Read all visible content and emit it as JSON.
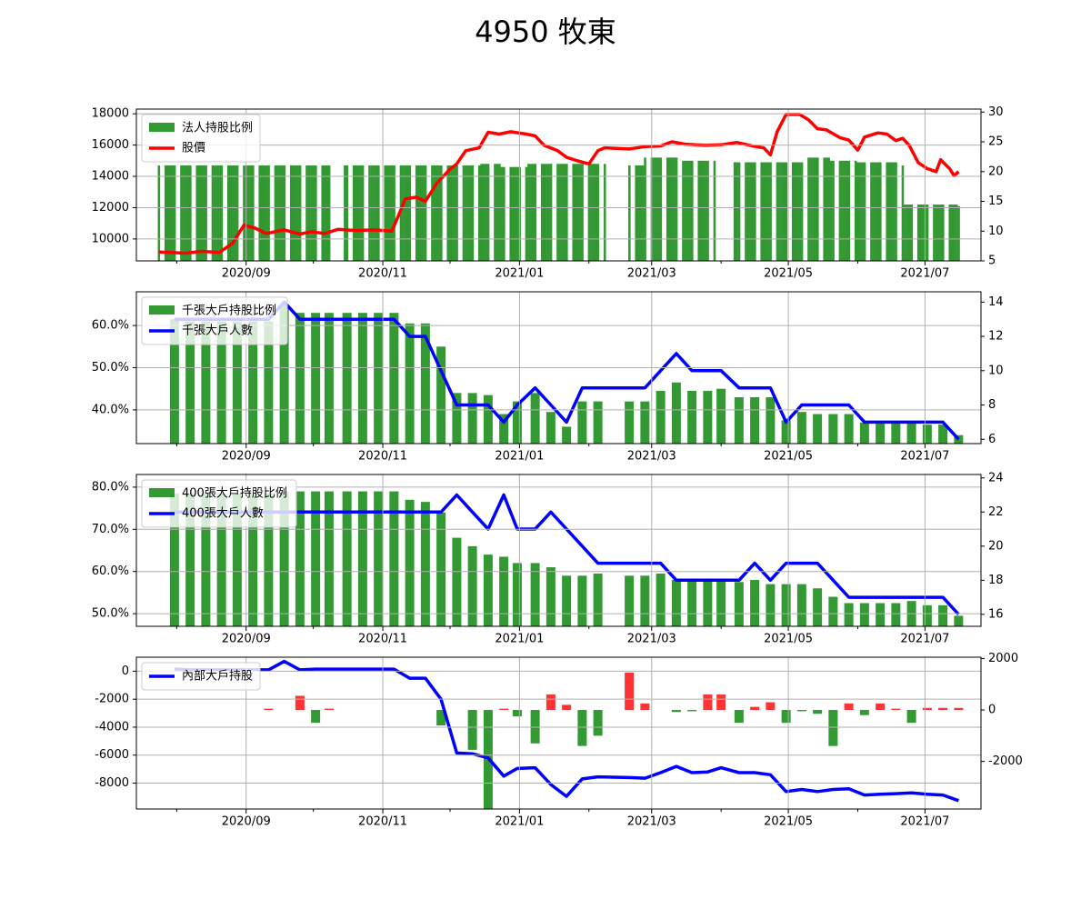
{
  "page": {
    "title": "4950 牧東"
  },
  "colors": {
    "bar": "#008000",
    "price_line": "#ff0000",
    "count_line": "#0000ff",
    "pos_bar": "#ff0000",
    "neg_bar": "#008000",
    "grid": "#b0b0b0"
  },
  "x_axis": {
    "start": "2020-07-14",
    "end": "2021-07-26",
    "ticks": [
      {
        "date": "2020-09-01",
        "label": "2020/09"
      },
      {
        "date": "2020-11-01",
        "label": "2020/11"
      },
      {
        "date": "2021-01-01",
        "label": "2021/01"
      },
      {
        "date": "2021-03-01",
        "label": "2021/03"
      },
      {
        "date": "2021-05-01",
        "label": "2021/05"
      },
      {
        "date": "2021-07-01",
        "label": "2021/07"
      }
    ],
    "minor_ticks": [
      "2020-08-01",
      "2020-10-01",
      "2020-12-01",
      "2021-02-01",
      "2021-04-01",
      "2021-06-01"
    ]
  },
  "chart_data": [
    {
      "type": "bar",
      "name": "panel1",
      "legend": [
        "法人持股比例",
        "股價"
      ],
      "left_axis": {
        "ylim": [
          8600,
          18300
        ],
        "ticks": [
          10000,
          12000,
          14000,
          16000,
          18000
        ],
        "format": "int"
      },
      "right_axis": {
        "ylim": [
          5,
          30.5
        ],
        "ticks": [
          5,
          10,
          15,
          20,
          25,
          30
        ],
        "format": "int"
      },
      "bars": {
        "name": "法人持股比例",
        "start": "2020-07-24",
        "end": "2021-07-16",
        "gaps": [
          [
            "2020-10-09",
            "2020-10-14"
          ],
          [
            "2021-02-09",
            "2021-02-18"
          ],
          [
            "2021-03-30",
            "2021-04-06"
          ]
        ],
        "segments": [
          [
            "2020-07-24",
            14700
          ],
          [
            "2020-12-01",
            14700
          ],
          [
            "2020-12-15",
            14800
          ],
          [
            "2020-12-24",
            14600
          ],
          [
            "2021-01-05",
            14800
          ],
          [
            "2021-02-08",
            14800
          ],
          [
            "2021-02-19",
            14700
          ],
          [
            "2021-02-26",
            15200
          ],
          [
            "2021-03-15",
            15000
          ],
          [
            "2021-04-01",
            14900
          ],
          [
            "2021-04-20",
            14900
          ],
          [
            "2021-04-28",
            14900
          ],
          [
            "2021-05-10",
            15200
          ],
          [
            "2021-05-20",
            15000
          ],
          [
            "2021-06-01",
            14900
          ],
          [
            "2021-06-20",
            14700
          ],
          [
            "2021-06-22",
            12200
          ],
          [
            "2021-07-16",
            12100
          ]
        ]
      },
      "line": {
        "name": "股價",
        "points": [
          [
            "2020-07-24",
            6.5
          ],
          [
            "2020-08-05",
            6.3
          ],
          [
            "2020-08-12",
            6.6
          ],
          [
            "2020-08-20",
            6.4
          ],
          [
            "2020-08-26",
            8.0
          ],
          [
            "2020-08-31",
            11.0
          ],
          [
            "2020-09-05",
            10.5
          ],
          [
            "2020-09-10",
            9.6
          ],
          [
            "2020-09-18",
            10.2
          ],
          [
            "2020-09-25",
            9.5
          ],
          [
            "2020-09-30",
            9.9
          ],
          [
            "2020-10-06",
            9.6
          ],
          [
            "2020-10-12",
            10.3
          ],
          [
            "2020-10-20",
            10.1
          ],
          [
            "2020-10-28",
            10.2
          ],
          [
            "2020-11-05",
            10.0
          ],
          [
            "2020-11-08",
            12.6
          ],
          [
            "2020-11-11",
            15.4
          ],
          [
            "2020-11-16",
            15.7
          ],
          [
            "2020-11-20",
            15.0
          ],
          [
            "2020-11-25",
            18.0
          ],
          [
            "2020-12-01",
            20.4
          ],
          [
            "2020-12-04",
            21.3
          ],
          [
            "2020-12-08",
            23.5
          ],
          [
            "2020-12-14",
            24.0
          ],
          [
            "2020-12-18",
            26.6
          ],
          [
            "2020-12-23",
            26.3
          ],
          [
            "2020-12-28",
            26.7
          ],
          [
            "2021-01-04",
            26.3
          ],
          [
            "2021-01-08",
            26.0
          ],
          [
            "2021-01-12",
            24.4
          ],
          [
            "2021-01-18",
            23.5
          ],
          [
            "2021-01-22",
            22.4
          ],
          [
            "2021-01-27",
            21.8
          ],
          [
            "2021-02-01",
            21.3
          ],
          [
            "2021-02-05",
            23.5
          ],
          [
            "2021-02-08",
            24.0
          ],
          [
            "2021-02-19",
            23.8
          ],
          [
            "2021-02-26",
            24.2
          ],
          [
            "2021-03-05",
            24.3
          ],
          [
            "2021-03-10",
            25.0
          ],
          [
            "2021-03-16",
            24.6
          ],
          [
            "2021-03-25",
            24.4
          ],
          [
            "2021-04-01",
            24.5
          ],
          [
            "2021-04-08",
            24.9
          ],
          [
            "2021-04-15",
            24.3
          ],
          [
            "2021-04-20",
            24.0
          ],
          [
            "2021-04-23",
            22.8
          ],
          [
            "2021-04-26",
            26.7
          ],
          [
            "2021-04-30",
            29.6
          ],
          [
            "2021-05-06",
            29.6
          ],
          [
            "2021-05-10",
            28.7
          ],
          [
            "2021-05-14",
            27.2
          ],
          [
            "2021-05-18",
            27.0
          ],
          [
            "2021-05-24",
            25.7
          ],
          [
            "2021-05-28",
            25.3
          ],
          [
            "2021-06-01",
            23.6
          ],
          [
            "2021-06-04",
            25.8
          ],
          [
            "2021-06-10",
            26.5
          ],
          [
            "2021-06-14",
            26.3
          ],
          [
            "2021-06-18",
            25.2
          ],
          [
            "2021-06-21",
            25.6
          ],
          [
            "2021-06-24",
            24.4
          ],
          [
            "2021-06-28",
            21.5
          ],
          [
            "2021-07-02",
            20.5
          ],
          [
            "2021-07-06",
            20.0
          ],
          [
            "2021-07-08",
            22.0
          ],
          [
            "2021-07-12",
            20.5
          ],
          [
            "2021-07-14",
            19.3
          ],
          [
            "2021-07-16",
            20.0
          ]
        ]
      }
    },
    {
      "type": "bar",
      "name": "panel2",
      "legend": [
        "千張大戶持股比例",
        "千張大戶人數"
      ],
      "left_axis": {
        "ylim": [
          32.0,
          68.0
        ],
        "ticks": [
          40,
          50,
          60
        ],
        "format": "pct"
      },
      "right_axis": {
        "ylim": [
          5.75,
          14.6
        ],
        "ticks": [
          6,
          8,
          10,
          12,
          14
        ],
        "format": "int"
      },
      "weekly_dates": [
        "2020-07-31",
        "2020-08-07",
        "2020-08-14",
        "2020-08-21",
        "2020-08-28",
        "2020-09-04",
        "2020-09-11",
        "2020-09-18",
        "2020-09-25",
        "2020-10-02",
        "2020-10-08",
        "2020-10-16",
        "2020-10-23",
        "2020-10-30",
        "2020-11-06",
        "2020-11-13",
        "2020-11-20",
        "2020-11-27",
        "2020-12-04",
        "2020-12-11",
        "2020-12-18",
        "2020-12-25",
        "2020-12-31",
        "2021-01-08",
        "2021-01-15",
        "2021-01-22",
        "2021-01-29",
        "2021-02-05",
        "2021-02-19",
        "2021-02-26",
        "2021-03-05",
        "2021-03-12",
        "2021-03-19",
        "2021-03-26",
        "2021-04-01",
        "2021-04-09",
        "2021-04-16",
        "2021-04-23",
        "2021-04-30",
        "2021-05-07",
        "2021-05-14",
        "2021-05-21",
        "2021-05-28",
        "2021-06-04",
        "2021-06-11",
        "2021-06-18",
        "2021-06-25",
        "2021-07-02",
        "2021-07-09",
        "2021-07-16"
      ],
      "bars": [
        61.5,
        61.0,
        61.0,
        61.0,
        61.0,
        61.0,
        61.0,
        65.0,
        63.0,
        63.0,
        63.0,
        63.0,
        63.0,
        63.0,
        63.0,
        60.5,
        60.5,
        55.0,
        44.0,
        44.0,
        43.5,
        39.0,
        42.0,
        44.0,
        39.5,
        36.0,
        42.0,
        42.0,
        42.0,
        42.0,
        44.5,
        46.5,
        44.5,
        44.5,
        45.0,
        43.0,
        43.0,
        43.0,
        37.5,
        39.5,
        39.0,
        39.0,
        39.0,
        37.0,
        37.0,
        37.0,
        37.0,
        36.5,
        36.5,
        34.0
      ],
      "line": [
        13,
        13,
        13,
        13,
        13,
        13,
        13,
        14,
        13,
        13,
        13,
        13,
        13,
        13,
        13,
        12,
        12,
        10,
        8,
        8,
        8,
        7,
        8,
        9,
        8,
        7,
        9,
        9,
        9,
        9,
        10,
        11,
        10,
        10,
        10,
        9,
        9,
        9,
        7,
        8,
        8,
        8,
        8,
        7,
        7,
        7,
        7,
        7,
        7,
        6
      ]
    },
    {
      "type": "bar",
      "name": "panel3",
      "legend": [
        "400張大戶持股比例",
        "400張大戶人數"
      ],
      "left_axis": {
        "ylim": [
          47.0,
          83.0
        ],
        "ticks": [
          50,
          60,
          70,
          80
        ],
        "format": "pct"
      },
      "right_axis": {
        "ylim": [
          15.3,
          24.2
        ],
        "ticks": [
          16,
          18,
          20,
          22,
          24
        ],
        "format": "int"
      },
      "bars": [
        78.5,
        78.5,
        78.5,
        78.5,
        78.5,
        78.5,
        78.5,
        79.0,
        79.0,
        79.0,
        79.0,
        79.0,
        79.0,
        79.0,
        79.0,
        77.0,
        76.5,
        74.0,
        68.0,
        66.0,
        64.0,
        63.5,
        62.0,
        62.0,
        61.0,
        59.0,
        59.0,
        59.5,
        59.0,
        59.0,
        59.5,
        58.0,
        58.0,
        58.0,
        58.0,
        57.5,
        58.0,
        57.0,
        57.0,
        57.0,
        56.0,
        54.0,
        52.5,
        52.5,
        52.5,
        52.5,
        53.0,
        52.0,
        52.0,
        49.5
      ],
      "line": [
        22,
        22,
        22,
        22,
        22,
        22,
        22,
        22,
        22,
        22,
        22,
        22,
        22,
        22,
        22,
        22,
        22,
        22,
        23,
        22,
        21,
        23,
        21,
        21,
        22,
        21,
        20,
        19,
        19,
        19,
        19,
        18,
        18,
        18,
        18,
        18,
        19,
        18,
        19,
        19,
        19,
        18,
        17,
        17,
        17,
        17,
        17,
        17,
        17,
        16
      ]
    },
    {
      "type": "bar",
      "name": "panel4",
      "legend": [
        "內部大戶持股"
      ],
      "left_axis": {
        "ylim": [
          -9850,
          1000
        ],
        "ticks": [
          -8000,
          -6000,
          -4000,
          -2000,
          0
        ],
        "format": "int"
      },
      "right_axis": {
        "ylim": [
          -3850,
          2050
        ],
        "ticks": [
          -2000,
          0,
          2000
        ],
        "format": "int"
      },
      "bars_start_index": 6,
      "bars": [
        50,
        0,
        550,
        -500,
        50,
        0,
        0,
        0,
        0,
        0,
        0,
        -600,
        0,
        -1550,
        -3850,
        50,
        -250,
        -1300,
        600,
        200,
        -1400,
        -1000,
        1450,
        250,
        0,
        -80,
        -50,
        600,
        600,
        -500,
        120,
        300,
        -500,
        -50,
        -150,
        -1400,
        250,
        -200,
        250,
        50,
        -500,
        80,
        80,
        80,
        -150,
        -100,
        -550
      ],
      "line": [
        150,
        100,
        100,
        100,
        100,
        100,
        100,
        700,
        100,
        150,
        150,
        150,
        150,
        150,
        150,
        -500,
        -500,
        -2000,
        -5850,
        -5900,
        -6200,
        -7500,
        -6950,
        -6900,
        -8100,
        -8950,
        -7700,
        -7550,
        -7600,
        -7650,
        -7250,
        -6800,
        -7250,
        -7200,
        -6900,
        -7250,
        -7250,
        -7400,
        -8600,
        -8450,
        -8600,
        -8450,
        -8400,
        -8850,
        -8800,
        -8750,
        -8700,
        -8800,
        -8850,
        -9250
      ]
    }
  ]
}
